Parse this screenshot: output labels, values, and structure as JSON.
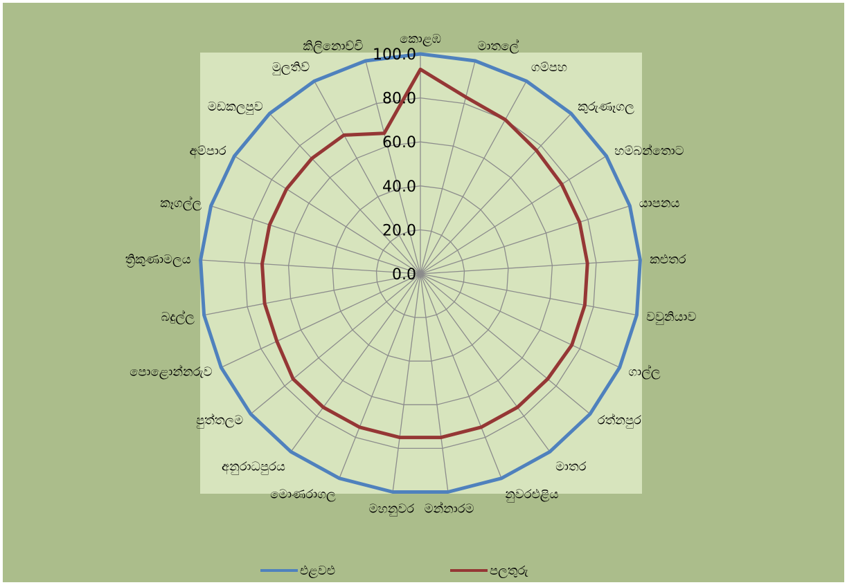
{
  "chart_data": {
    "type": "radar",
    "title": "",
    "categories": [
      "කොළඹ",
      "මාතලේ",
      "ගම්පහ",
      "කුරුණෑගල",
      "හම්බන්තොට",
      "යාපනය",
      "කළුතර",
      "වවුනියාව",
      "ගාල්ල",
      "රත්නපුර",
      "මාතර",
      "නුවරඑළිය",
      "මන්නාරම",
      "මහනුවර",
      "මොණරාගල",
      "අනුරාධපුරය",
      "පුත්තලම",
      "පොළොන්නරුව",
      "බදුල්ල",
      "ත්‍රිකුණාමලය",
      "කෑගල්ල",
      "අම්පාර",
      "මඩකලපුව",
      "මුලතිව්",
      "කිලිනොච්චි"
    ],
    "series": [
      {
        "name": "එළවළු",
        "color": "#4f81bd",
        "values": [
          100,
          100,
          100,
          100,
          100,
          100,
          100,
          100,
          100,
          100,
          100,
          100,
          100,
          100,
          100,
          100,
          100,
          100,
          100,
          100,
          100,
          100,
          100,
          100,
          100
        ]
      },
      {
        "name": "පලතුරු",
        "color": "#953735",
        "values": [
          93,
          83,
          80,
          77,
          76,
          76,
          76,
          76,
          76,
          75,
          75,
          75,
          75,
          75,
          75,
          75,
          75,
          72,
          72,
          72,
          72,
          72,
          72,
          72,
          66
        ]
      }
    ],
    "rlim": [
      0,
      100
    ],
    "ticks": [
      "0.0",
      "20.0",
      "40.0",
      "60.0",
      "80.0",
      "100.0"
    ],
    "grid": true,
    "legend_position": "bottom",
    "colors": {
      "outer_bg": "#abbd8b",
      "plot_bg": "#d7e4bd",
      "grid": "#8c8c8c"
    }
  }
}
